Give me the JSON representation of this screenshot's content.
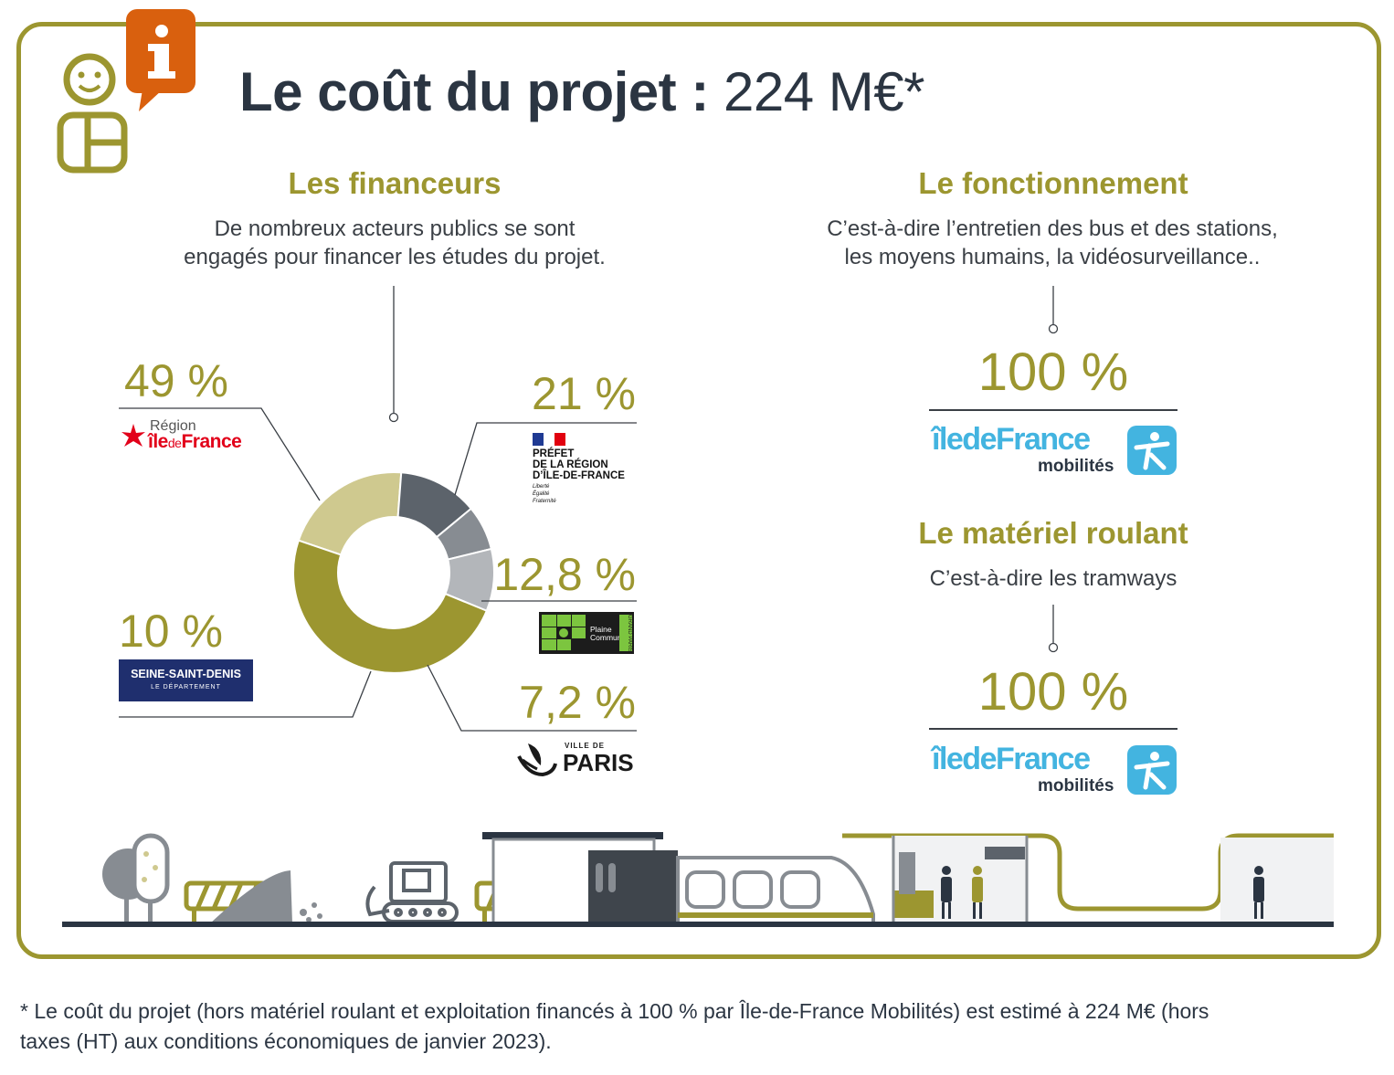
{
  "title": {
    "bold": "Le coût du projet :",
    "light": "224 M€*"
  },
  "financeurs": {
    "heading": "Les financeurs",
    "text_line1": "De nombreux acteurs publics se sont",
    "text_line2": "engagés pour financer les études du projet."
  },
  "fonctionnement": {
    "heading": "Le fonctionnement",
    "text_line1": "C’est-à-dire l’entretien des bus et des stations,",
    "text_line2": "les moyens humains, la vidéosurveillance..",
    "percent": "100 %",
    "logo": {
      "name": "îledeFrance",
      "sub": "mobilités"
    }
  },
  "materiel": {
    "heading": "Le matériel roulant",
    "text": "C’est-à-dire les tramways",
    "percent": "100 %",
    "logo": {
      "name": "îledeFrance",
      "sub": "mobilités"
    }
  },
  "logos": {
    "region": {
      "line1": "Région",
      "line2a": "île",
      "line2b": "de",
      "line2c": "France"
    },
    "prefet": {
      "line1": "PRÉFET",
      "line2": "DE LA RÉGION",
      "line3": "D’ÎLE-DE-FRANCE",
      "motto1": "Liberté",
      "motto2": "Égalité",
      "motto3": "Fraternité"
    },
    "plaine": {
      "line1": "Plaine",
      "line2": "Commune",
      "side": "GRAND PARIS"
    },
    "seine": {
      "line1": "SEINE-SAINT-DENIS",
      "line2": "LE DÉPARTEMENT"
    },
    "paris": {
      "line1": "VILLE DE",
      "line2": "PARIS"
    }
  },
  "chart_data": {
    "type": "pie",
    "title": "Les financeurs",
    "slices": [
      {
        "label": "49 %",
        "value": 49,
        "color": "#9c9630"
      },
      {
        "label": "21 %",
        "value": 21,
        "color": "#cfc98f"
      },
      {
        "label": "12,8 %",
        "value": 12.8,
        "color": "#5c636b"
      },
      {
        "label": "7,2 %",
        "value": 7.2,
        "color": "#878c92"
      },
      {
        "label": "10 %",
        "value": 10,
        "color": "#b3b6ba"
      }
    ]
  },
  "footnote": {
    "line1": "* Le coût du projet (hors matériel roulant et exploitation financés à 100 % par Île-de-France Mobilités) est estimé à 224 M€ (hors",
    "line2": "taxes (HT) aux conditions économiques de janvier 2023)."
  },
  "colors": {
    "accent": "#9c9630",
    "dark": "#2b3542",
    "info": "#d9600e",
    "idfm": "#43b4e0"
  },
  "icons": [
    "info-icon",
    "person-icon"
  ]
}
